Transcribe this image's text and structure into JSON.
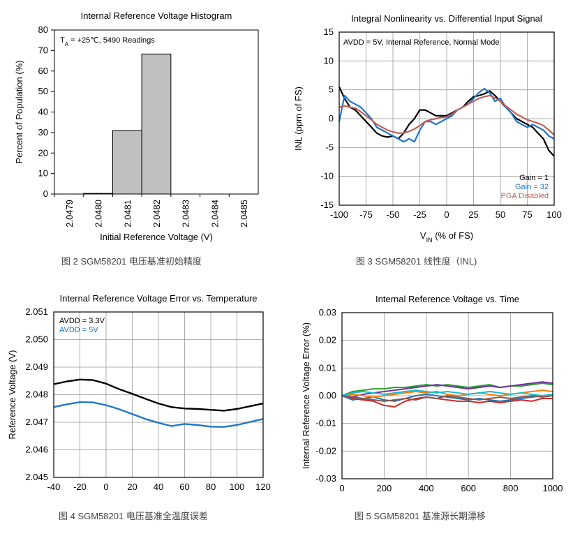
{
  "chart_data": [
    {
      "type": "bar",
      "title": "Internal Reference Voltage Histogram",
      "xlabel": "Initial Reference Voltage (V)",
      "ylabel": "Percent of Population (%)",
      "annotation_main": "T",
      "annotation_sub": "A",
      "annotation_rest": " = +25℃,  5490 Readings",
      "categories": [
        "2.0479",
        "2.0480",
        "2.0481",
        "2.0482",
        "2.0483",
        "2.0484",
        "2.0485"
      ],
      "values": [
        0,
        0.3,
        31,
        68.3,
        0,
        0,
        0
      ],
      "ylim": [
        0,
        80
      ],
      "yticks": [
        "0",
        "10",
        "20",
        "30",
        "40",
        "50",
        "60",
        "70",
        "80"
      ],
      "bar_color": "#c0c0c0",
      "caption": "图 2 SGM58201 电压基准初始精度"
    },
    {
      "type": "line",
      "title": "Integral Nonlinearity vs. Differential Input Signal",
      "xlabel_main": "V",
      "xlabel_sub": "IN",
      "xlabel_rest": " (% of FS)",
      "ylabel": "INL (ppm of FS)",
      "annotation": "AVDD = 5V, Internal Reference, Normal Mode",
      "xlim": [
        -100,
        100
      ],
      "ylim": [
        -15,
        15
      ],
      "xticks": [
        "-100",
        "-75",
        "-50",
        "-25",
        "0",
        "25",
        "50",
        "75",
        "100"
      ],
      "yticks": [
        "-15",
        "-10",
        "-5",
        "0",
        "5",
        "10",
        "15"
      ],
      "grid": true,
      "legend_position": "bottom-right",
      "series": [
        {
          "name": "Gain = 1",
          "color": "#000000",
          "x": [
            -100,
            -95,
            -90,
            -85,
            -80,
            -75,
            -70,
            -65,
            -60,
            -55,
            -50,
            -45,
            -40,
            -35,
            -30,
            -25,
            -20,
            -15,
            -10,
            -5,
            0,
            5,
            10,
            15,
            20,
            25,
            30,
            35,
            40,
            45,
            50,
            55,
            60,
            65,
            70,
            75,
            80,
            85,
            90,
            95,
            100
          ],
          "y": [
            5.5,
            3.5,
            2,
            1.5,
            0.5,
            -0.5,
            -1.5,
            -2.5,
            -3,
            -3.2,
            -3,
            -3.5,
            -2.5,
            -1,
            0,
            1.5,
            1.5,
            1,
            0.5,
            0.5,
            0.5,
            1,
            1.5,
            2,
            3,
            3.8,
            4,
            4.3,
            4.8,
            4,
            3,
            2,
            1,
            0,
            -0.5,
            -1,
            -1.5,
            -2.5,
            -3.5,
            -5.5,
            -6.5
          ]
        },
        {
          "name": "Gain = 32",
          "color": "#1f77c4",
          "x": [
            -100,
            -95,
            -90,
            -85,
            -80,
            -75,
            -70,
            -65,
            -60,
            -55,
            -50,
            -45,
            -40,
            -35,
            -30,
            -25,
            -20,
            -15,
            -10,
            -5,
            0,
            5,
            10,
            15,
            20,
            25,
            30,
            35,
            40,
            45,
            50,
            55,
            60,
            65,
            70,
            75,
            80,
            85,
            90,
            95,
            100
          ],
          "y": [
            -0.5,
            4,
            3,
            2.5,
            2,
            1,
            0,
            -1.5,
            -2,
            -2.5,
            -3,
            -3.5,
            -4,
            -3.5,
            -4,
            -2,
            -0.5,
            -0.5,
            -1,
            -0.5,
            0,
            0.5,
            1.5,
            2,
            2.5,
            3.5,
            4.5,
            5.2,
            4.5,
            3,
            3.5,
            2,
            1,
            -0.5,
            -1,
            -1.5,
            -1,
            -1.5,
            -2,
            -3,
            -3.5
          ]
        },
        {
          "name": "PGA Disabled",
          "color": "#c0605a",
          "x": [
            -100,
            -95,
            -90,
            -85,
            -80,
            -75,
            -70,
            -65,
            -60,
            -55,
            -50,
            -45,
            -40,
            -35,
            -30,
            -25,
            -20,
            -15,
            -10,
            -5,
            0,
            5,
            10,
            15,
            20,
            25,
            30,
            35,
            40,
            45,
            50,
            55,
            60,
            65,
            70,
            75,
            80,
            85,
            90,
            95,
            100
          ],
          "y": [
            2,
            2.2,
            2,
            1.8,
            1.2,
            0.5,
            -0.2,
            -1,
            -1.5,
            -2,
            -2.3,
            -2.5,
            -2.5,
            -2.2,
            -1.8,
            -1.2,
            -0.5,
            -0.2,
            0,
            0.2,
            0.3,
            0.8,
            1.5,
            2,
            2.5,
            3,
            3.5,
            3.8,
            4,
            3.6,
            3,
            2.2,
            1.5,
            0.8,
            0.3,
            -0.2,
            -0.5,
            -0.8,
            -1.2,
            -2,
            -2.8
          ]
        }
      ],
      "caption": "图 3 SGM58201 线性度（INL)"
    },
    {
      "type": "line",
      "title": "Internal Reference Voltage Error vs. Temperature",
      "xlabel": "",
      "ylabel": "Reference Voltage (V)",
      "xlim": [
        -40,
        120
      ],
      "ylim": [
        2.045,
        2.051
      ],
      "xticks": [
        "-40",
        "-20",
        "0",
        "20",
        "40",
        "60",
        "80",
        "100",
        "120"
      ],
      "yticks": [
        "2.045",
        "2.046",
        "2.047",
        "2.048",
        "2.049",
        "2.050",
        "2.051"
      ],
      "grid": true,
      "legend_position": "top-left",
      "series": [
        {
          "name": "AVDD = 3.3V",
          "color": "#000000",
          "x": [
            -40,
            -30,
            -20,
            -10,
            0,
            10,
            20,
            30,
            40,
            50,
            60,
            70,
            80,
            90,
            100,
            110,
            120
          ],
          "y": [
            2.04838,
            2.04848,
            2.04855,
            2.04853,
            2.0484,
            2.0482,
            2.04803,
            2.04785,
            2.04768,
            2.04755,
            2.0475,
            2.04748,
            2.04745,
            2.04742,
            2.04748,
            2.04758,
            2.04768
          ]
        },
        {
          "name": "AVDD = 5V",
          "color": "#1f77c4",
          "x": [
            -40,
            -30,
            -20,
            -10,
            0,
            10,
            20,
            30,
            40,
            50,
            60,
            70,
            80,
            90,
            100,
            110,
            120
          ],
          "y": [
            2.04755,
            2.04765,
            2.04773,
            2.04772,
            2.04762,
            2.04747,
            2.0473,
            2.04712,
            2.04698,
            2.04686,
            2.04694,
            2.0469,
            2.04684,
            2.04683,
            2.0469,
            2.04701,
            2.04712
          ]
        }
      ],
      "caption": "图 4 SGM58201 电压基准全温度误差"
    },
    {
      "type": "line",
      "title": "Internal Reference Voltage vs. Time",
      "xlabel": "",
      "ylabel": "Internal Reference Voltage Error (%)",
      "xlim": [
        0,
        1000
      ],
      "ylim": [
        -0.03,
        0.03
      ],
      "xticks": [
        "0",
        "200",
        "400",
        "600",
        "800",
        "1000"
      ],
      "yticks": [
        "-0.03",
        "-0.02",
        "-0.01",
        "0.00",
        "0.01",
        "0.02",
        "0.03"
      ],
      "grid": true,
      "series": [
        {
          "color": "#2ca02c",
          "x": [
            0,
            50,
            100,
            150,
            200,
            250,
            300,
            350,
            400,
            450,
            500,
            550,
            600,
            650,
            700,
            750,
            800,
            850,
            900,
            950,
            1000
          ],
          "y": [
            0,
            0.0015,
            0.002,
            0.0025,
            0.0025,
            0.003,
            0.003,
            0.0035,
            0.004,
            0.0035,
            0.004,
            0.0035,
            0.003,
            0.0035,
            0.004,
            0.003,
            0.0035,
            0.0035,
            0.004,
            0.0045,
            0.004
          ]
        },
        {
          "color": "#7030a0",
          "x": [
            0,
            50,
            100,
            150,
            200,
            250,
            300,
            350,
            400,
            450,
            500,
            550,
            600,
            650,
            700,
            750,
            800,
            850,
            900,
            950,
            1000
          ],
          "y": [
            0,
            -0.0005,
            0.0005,
            0.001,
            0.0015,
            0.002,
            0.0025,
            0.003,
            0.0035,
            0.004,
            0.0035,
            0.003,
            0.0025,
            0.003,
            0.0035,
            0.003,
            0.0035,
            0.004,
            0.0045,
            0.005,
            0.0045
          ]
        },
        {
          "color": "#d62728",
          "x": [
            0,
            50,
            100,
            150,
            200,
            250,
            300,
            350,
            400,
            450,
            500,
            550,
            600,
            650,
            700,
            750,
            800,
            850,
            900,
            950,
            1000
          ],
          "y": [
            0,
            -0.001,
            -0.0015,
            -0.002,
            -0.0035,
            -0.004,
            -0.002,
            -0.001,
            -0.0005,
            -0.001,
            -0.0015,
            -0.002,
            -0.002,
            -0.0025,
            -0.002,
            -0.0025,
            -0.002,
            -0.0015,
            -0.002,
            -0.001,
            -0.001
          ]
        },
        {
          "color": "#1f77b4",
          "x": [
            0,
            50,
            100,
            150,
            200,
            250,
            300,
            350,
            400,
            450,
            500,
            550,
            600,
            650,
            700,
            750,
            800,
            850,
            900,
            950,
            1000
          ],
          "y": [
            0,
            -0.0015,
            -0.001,
            -0.0005,
            -0.0015,
            -0.002,
            -0.001,
            0,
            0.0005,
            0,
            -0.0005,
            -0.001,
            -0.0015,
            -0.001,
            -0.0015,
            -0.002,
            -0.0015,
            -0.001,
            -0.0005,
            0,
            0.0005
          ]
        },
        {
          "color": "#ff7f0e",
          "x": [
            0,
            50,
            100,
            150,
            200,
            250,
            300,
            350,
            400,
            450,
            500,
            550,
            600,
            650,
            700,
            750,
            800,
            850,
            900,
            950,
            1000
          ],
          "y": [
            0,
            0.0005,
            0,
            -0.0005,
            0,
            0.0005,
            0.001,
            0.0015,
            0.001,
            0.0015,
            0.0005,
            0,
            0.0005,
            0.001,
            0.0005,
            0,
            0.0005,
            0.001,
            0.0015,
            0.002,
            0.0015
          ]
        },
        {
          "color": "#17becf",
          "x": [
            0,
            50,
            100,
            150,
            200,
            250,
            300,
            350,
            400,
            450,
            500,
            550,
            600,
            650,
            700,
            750,
            800,
            850,
            900,
            950,
            1000
          ],
          "y": [
            0,
            0.001,
            0.0015,
            0.001,
            0.0005,
            0.001,
            0.0015,
            0.002,
            0.0015,
            0.001,
            0.0015,
            0.001,
            0.0005,
            0.001,
            0.0015,
            0.001,
            0.0005,
            0.001,
            0.0005,
            0,
            0.0005
          ]
        },
        {
          "color": "#8c564b",
          "x": [
            0,
            50,
            100,
            150,
            200,
            250,
            300,
            350,
            400,
            450,
            500,
            550,
            600,
            650,
            700,
            750,
            800,
            850,
            900,
            950,
            1000
          ],
          "y": [
            0,
            -0.0005,
            -0.001,
            -0.0015,
            -0.002,
            -0.0015,
            -0.001,
            -0.0015,
            -0.0005,
            -0.001,
            0,
            -0.0005,
            -0.001,
            -0.0015,
            -0.001,
            -0.0005,
            -0.001,
            -0.0005,
            0,
            -0.0005,
            0
          ]
        }
      ],
      "caption": "图 5 SGM58201 基准源长期漂移"
    }
  ]
}
